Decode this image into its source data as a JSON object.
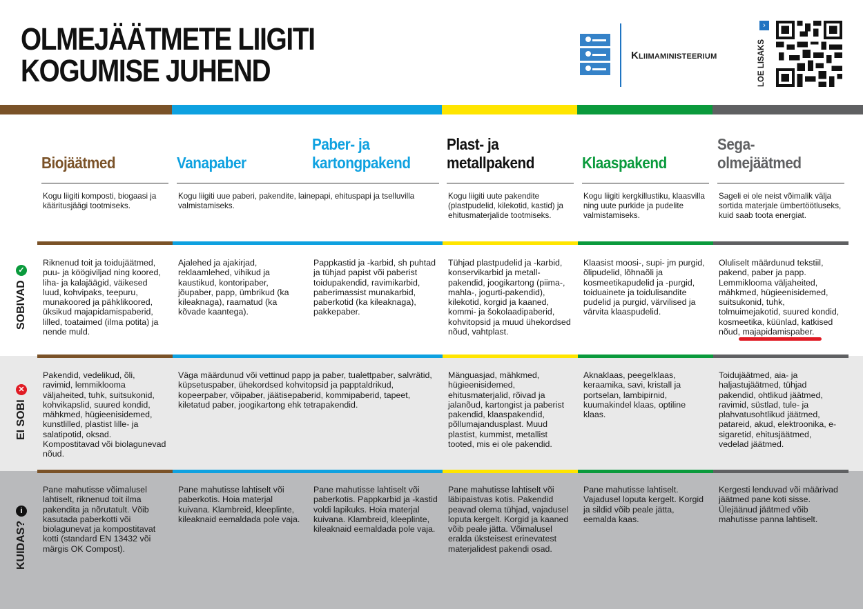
{
  "title": [
    "OLMEJÄÄTMETE LIIGITI",
    "KOGUMISE JUHEND"
  ],
  "ministry": "Kliimaministeerium",
  "read_more": "LOE LISAKS",
  "colors": {
    "bio": "#7a5228",
    "paper": "#0ea1e0",
    "plast": "#ffe500",
    "glass": "#0a9a3c",
    "mixed": "#5f6062",
    "accent_blue": "#1f74c2",
    "ok": "#0a9a3c",
    "no": "#e01b24",
    "row2_bg": "#e9e9e9",
    "row3_bg": "#b9babc"
  },
  "row_labels": {
    "sobivad": "SOBIVAD",
    "ei_sobi": "EI SOBI",
    "kuidas": "KUIDAS?"
  },
  "columns": [
    {
      "name": "Biojäätmed",
      "description": "Kogu liigiti komposti, biogaasi ja kääritusjäägi tootmiseks.",
      "sobivad": "Riknenud toit ja toidujäätmed, puu- ja köögiviljad ning koored, liha- ja kalajäägid, väikesed luud, kohvipaks, teepuru, munakoored ja pähklikoored, üksikud majapidamispaberid, lilled, toataimed (ilma potita) ja nende muld.",
      "ei_sobi": "Pakendid, vedelikud, õli, ravimid, lemmiklooma väljaheited, tuhk, suitsukonid, kohvikapslid, suured kondid, mähkmed, hügieenisidemed, kunstlilled, plastist lille- ja salatipotid, oksad. Kompostitavad või biolagunevad nõud.",
      "kuidas": "Pane mahutisse võimalusel lahtiselt, riknenud toit ilma pakendita ja nõrutatult. Võib kasutada paberkotti või biolagunevat ja kompostitavat kotti (standard EN 13432 või märgis OK Compost)."
    },
    {
      "name": "Vanapaber",
      "description": "Kogu liigiti uue paberi, pakendite, lainepapi, ehituspapi ja tselluvilla valmistamiseks.",
      "sobivad": "Ajalehed ja ajakirjad, reklaamlehed, vihikud ja kaustikud, kontoripaber, jõupaber, papp, ümbrikud (ka kileaknaga), raamatud (ka kõvade kaantega).",
      "ei_sobi": "Väga määrdunud või vettinud papp ja paber, tualettpaber, salvrätid, küpsetuspaber, ühekordsed kohvitopsid ja papptaldrikud, kopeerpaber, võipaber, jäätisepaberid, kommipaberid, tapeet, kiletatud paber, joogikartong ehk tetrapakendid.",
      "kuidas": "Pane mahutisse lahtiselt või paberkotis. Hoia materjal kuivana. Klambreid, kleeplinte, kileaknaid eemaldada pole vaja."
    },
    {
      "name": "Paber- ja kartongpakend",
      "sobivad": "Pappkastid ja -karbid, sh puhtad ja tühjad papist või paberist toidupakendid, ravimikarbid, paberimassist munakarbid, paberkotid (ka kileaknaga), pakkepaber.",
      "kuidas": "Pane mahutisse lahtiselt või paberkotis. Pappkarbid ja -kastid voldi lapikuks. Hoia materjal kuivana. Klambreid, kleeplinte, kileaknaid eemaldada pole vaja."
    },
    {
      "name": "Plast- ja metallpakend",
      "description": "Kogu liigiti uute pakendite (plastpudelid, kilekotid, kastid) ja ehitusmaterjalide tootmiseks.",
      "sobivad": "Tühjad plastpudelid ja -karbid, konservikarbid ja metall-pakendid, joogikartong (piima-, mahla-, jogurti-pakendid), kilekotid, korgid ja kaaned, kommi- ja šokolaadipaberid, kohvitopsid ja muud ühekordsed nõud, vahtplast.",
      "ei_sobi": "Mänguasjad, mähkmed, hügieenisidemed, ehitusmaterjalid, rõivad ja jalanõud, kartongist ja paberist pakendid, klaaspakendid, põllumajandusplast. Muud plastist, kummist, metallist tooted, mis ei ole pakendid.",
      "kuidas": "Pane mahutisse lahtiselt või läbipaistvas kotis. Pakendid peavad olema tühjad, vajadusel loputa kergelt. Korgid ja kaaned võib peale jätta. Võimalusel eralda üksteisest erinevatest materjalidest pakendi osad."
    },
    {
      "name": "Klaaspakend",
      "description": "Kogu liigiti kergkillustiku, klaasvilla ning uute purkide ja pudelite valmistamiseks.",
      "sobivad": "Klaasist moosi-, supi- jm purgid, õlipudelid, lõhnaõli ja kosmeetikapudelid ja -purgid, toiduainete ja toidulisandite pudelid ja purgid, värvilised ja värvita klaaspudelid.",
      "ei_sobi": "Aknaklaas, peegelklaas, keraamika, savi, kristall ja portselan, lambipirnid, kuumakindel klaas, optiline klaas.",
      "kuidas": "Pane mahutisse lahtiselt. Vajadusel loputa kergelt. Korgid ja sildid võib peale jätta, eemalda kaas."
    },
    {
      "name": "Sega-olmejäätmed",
      "description": "Sageli ei ole neist võimalik välja sortida materjale ümbertöötluseks, kuid saab toota energiat.",
      "sobivad": "Oluliselt määrdunud tekstiil, pakend, paber ja papp. Lemmiklooma väljaheited, mähkmed, hügieenisidemed, suitsukonid, tuhk, tolmuimejakotid, suured kondid, kosmeetika, küünlad, katkised nõud, majapidamispaber.",
      "ei_sobi": "Toidujäätmed, aia- ja haljastujäätmed, tühjad pakendid, ohtlikud jäätmed, ravimid, süstlad, tule- ja plahvatusohtlikud jäätmed, patareid, akud, elektroonika, e-sigaretid, ehitusjäätmed, vedelad jäätmed.",
      "kuidas": "Kergesti lenduvad või määrivad jäätmed pane koti sisse. Ülejäänud jäätmed võib mahutisse panna lahtiselt."
    }
  ]
}
